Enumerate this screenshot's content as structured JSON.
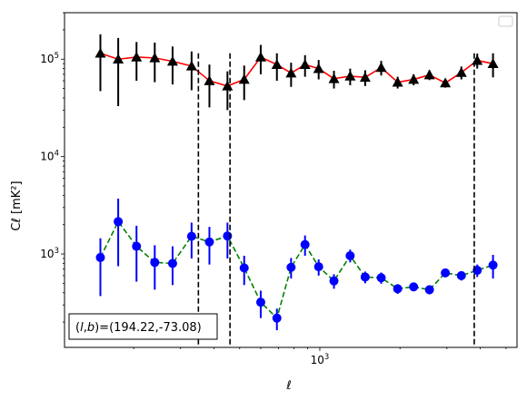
{
  "chart_data": {
    "type": "scatter",
    "title": "",
    "xlabel": "ℓ",
    "ylabel": "Cℓ  [mK²]",
    "x_scale": "log",
    "y_scale": "log",
    "xlim": [
      110,
      5500
    ],
    "ylim": [
      110,
      300000
    ],
    "grid": false,
    "legend": "top-right",
    "x_tick_labels": [
      {
        "value": 1000,
        "base": "10",
        "exp": "3"
      }
    ],
    "y_tick_labels": [
      {
        "value": 1000,
        "base": "10",
        "exp": "3"
      },
      {
        "value": 10000,
        "base": "10",
        "exp": "4"
      },
      {
        "value": 100000,
        "base": "10",
        "exp": "5"
      }
    ],
    "vlines": [
      350,
      460,
      3800
    ],
    "annotation": "(l, b)=(194.22,-73.08)",
    "series": [
      {
        "marker": "triangle",
        "marker_color": "#000000",
        "line_color": "#ff0000",
        "line_style": "solid",
        "points": [
          {
            "x": 150,
            "y": 115000,
            "ylo": 47000,
            "yhi": 180000
          },
          {
            "x": 175,
            "y": 100000,
            "ylo": 33000,
            "yhi": 165000
          },
          {
            "x": 205,
            "y": 105000,
            "ylo": 60000,
            "yhi": 150000
          },
          {
            "x": 240,
            "y": 103000,
            "ylo": 58000,
            "yhi": 148000
          },
          {
            "x": 280,
            "y": 95000,
            "ylo": 55000,
            "yhi": 135000
          },
          {
            "x": 330,
            "y": 85000,
            "ylo": 48000,
            "yhi": 120000
          },
          {
            "x": 385,
            "y": 60000,
            "ylo": 32000,
            "yhi": 88000
          },
          {
            "x": 450,
            "y": 53000,
            "ylo": 30000,
            "yhi": 75000
          },
          {
            "x": 520,
            "y": 62000,
            "ylo": 38000,
            "yhi": 86000
          },
          {
            "x": 600,
            "y": 105000,
            "ylo": 70000,
            "yhi": 140000
          },
          {
            "x": 690,
            "y": 88000,
            "ylo": 60000,
            "yhi": 115000
          },
          {
            "x": 780,
            "y": 72000,
            "ylo": 52000,
            "yhi": 92000
          },
          {
            "x": 880,
            "y": 88000,
            "ylo": 66000,
            "yhi": 110000
          },
          {
            "x": 990,
            "y": 80000,
            "ylo": 62000,
            "yhi": 98000
          },
          {
            "x": 1130,
            "y": 63000,
            "ylo": 50000,
            "yhi": 76000
          },
          {
            "x": 1300,
            "y": 67000,
            "ylo": 54000,
            "yhi": 80000
          },
          {
            "x": 1480,
            "y": 65000,
            "ylo": 53000,
            "yhi": 77000
          },
          {
            "x": 1700,
            "y": 82000,
            "ylo": 68000,
            "yhi": 96000
          },
          {
            "x": 1960,
            "y": 58000,
            "ylo": 50000,
            "yhi": 66000
          },
          {
            "x": 2250,
            "y": 62000,
            "ylo": 54000,
            "yhi": 70000
          },
          {
            "x": 2580,
            "y": 69000,
            "ylo": 61000,
            "yhi": 77000
          },
          {
            "x": 2960,
            "y": 57000,
            "ylo": 51000,
            "yhi": 63000
          },
          {
            "x": 3400,
            "y": 73000,
            "ylo": 62000,
            "yhi": 84000
          },
          {
            "x": 3900,
            "y": 97000,
            "ylo": 80000,
            "yhi": 114000
          },
          {
            "x": 4470,
            "y": 90000,
            "ylo": 65000,
            "yhi": 115000
          }
        ]
      },
      {
        "marker": "circle",
        "marker_color": "#0000ff",
        "line_color": "#008000",
        "line_style": "dashed",
        "points": [
          {
            "x": 150,
            "y": 920,
            "ylo": 370,
            "yhi": 1450
          },
          {
            "x": 175,
            "y": 2150,
            "ylo": 750,
            "yhi": 3700
          },
          {
            "x": 205,
            "y": 1200,
            "ylo": 520,
            "yhi": 1950
          },
          {
            "x": 240,
            "y": 820,
            "ylo": 430,
            "yhi": 1230
          },
          {
            "x": 280,
            "y": 800,
            "ylo": 480,
            "yhi": 1200
          },
          {
            "x": 330,
            "y": 1520,
            "ylo": 900,
            "yhi": 2100
          },
          {
            "x": 385,
            "y": 1330,
            "ylo": 780,
            "yhi": 1900
          },
          {
            "x": 450,
            "y": 1530,
            "ylo": 900,
            "yhi": 2100
          },
          {
            "x": 520,
            "y": 720,
            "ylo": 480,
            "yhi": 960
          },
          {
            "x": 600,
            "y": 320,
            "ylo": 220,
            "yhi": 420
          },
          {
            "x": 690,
            "y": 220,
            "ylo": 165,
            "yhi": 275
          },
          {
            "x": 780,
            "y": 730,
            "ylo": 560,
            "yhi": 910
          },
          {
            "x": 880,
            "y": 1250,
            "ylo": 960,
            "yhi": 1550
          },
          {
            "x": 990,
            "y": 740,
            "ylo": 600,
            "yhi": 880
          },
          {
            "x": 1130,
            "y": 530,
            "ylo": 440,
            "yhi": 620
          },
          {
            "x": 1300,
            "y": 960,
            "ylo": 820,
            "yhi": 1110
          },
          {
            "x": 1480,
            "y": 580,
            "ylo": 500,
            "yhi": 660
          },
          {
            "x": 1700,
            "y": 570,
            "ylo": 495,
            "yhi": 645
          },
          {
            "x": 1960,
            "y": 440,
            "ylo": 390,
            "yhi": 490
          },
          {
            "x": 2250,
            "y": 460,
            "ylo": 415,
            "yhi": 505
          },
          {
            "x": 2580,
            "y": 430,
            "ylo": 385,
            "yhi": 475
          },
          {
            "x": 2960,
            "y": 640,
            "ylo": 585,
            "yhi": 695
          },
          {
            "x": 3400,
            "y": 600,
            "ylo": 535,
            "yhi": 665
          },
          {
            "x": 3900,
            "y": 680,
            "ylo": 580,
            "yhi": 780
          },
          {
            "x": 4470,
            "y": 770,
            "ylo": 560,
            "yhi": 980
          }
        ]
      }
    ]
  }
}
